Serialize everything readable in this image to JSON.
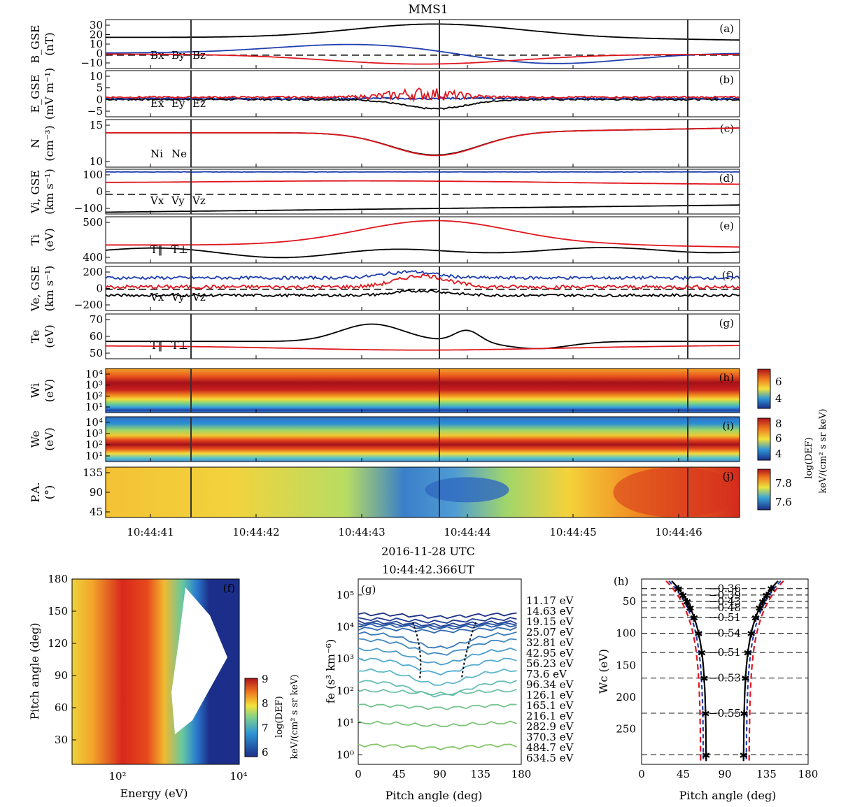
{
  "figure": {
    "spacecraft": "MMS1",
    "time_axis_label": "2016-11-28 UTC",
    "time_ticks": [
      "10:44:41",
      "10:44:42",
      "10:44:43",
      "10:44:44",
      "10:44:45",
      "10:44:46"
    ],
    "colorbar_ion": {
      "ticks": [
        "6",
        "4"
      ]
    },
    "colorbar_elec": {
      "ticks": [
        "8",
        "6",
        "4"
      ]
    },
    "colorbar_shared_label_1": "log(DEF)",
    "colorbar_shared_label_2": "keV/(cm² s sr keV)",
    "colorbar_pa": {
      "ticks": [
        "7.8",
        "7.6"
      ]
    }
  },
  "chart_data": [
    {
      "type": "line",
      "panel": "a",
      "label": "(a)",
      "ylabel_1": "B_GSE",
      "ylabel_2": "(nT)",
      "yticks": [
        "30",
        "20",
        "10",
        "0",
        "−10"
      ],
      "ylim": [
        -12,
        32
      ],
      "series": [
        {
          "name": "Bx",
          "color": "#000000"
        },
        {
          "name": "By",
          "color": "#1f3fae"
        },
        {
          "name": "Bz",
          "color": "#e0161e"
        }
      ]
    },
    {
      "type": "line",
      "panel": "b",
      "label": "(b)",
      "ylabel_1": "E_GSE",
      "ylabel_2": "(mV m⁻¹)",
      "yticks": [
        "10",
        "5",
        "0",
        "−5"
      ],
      "ylim": [
        -8,
        12
      ],
      "series": [
        {
          "name": "Ex",
          "color": "#000000"
        },
        {
          "name": "Ey",
          "color": "#1f3fae"
        },
        {
          "name": "Ez",
          "color": "#e0161e"
        }
      ]
    },
    {
      "type": "line",
      "panel": "c",
      "label": "(c)",
      "ylabel_1": "N",
      "ylabel_2": "(cm⁻³)",
      "yticks": [
        "15",
        "10"
      ],
      "ylim": [
        7,
        16
      ],
      "series": [
        {
          "name": "Ni",
          "color": "#000000"
        },
        {
          "name": "Ne",
          "color": "#e0161e"
        }
      ]
    },
    {
      "type": "line",
      "panel": "d",
      "label": "(d)",
      "ylabel_1": "Vi, GSE",
      "ylabel_2": "(km s⁻¹)",
      "yticks": [
        "100",
        "0",
        "−100"
      ],
      "ylim": [
        -110,
        140
      ],
      "series": [
        {
          "name": "Vx",
          "color": "#000000"
        },
        {
          "name": "Vy",
          "color": "#1f3fae"
        },
        {
          "name": "Vz",
          "color": "#e0161e"
        }
      ]
    },
    {
      "type": "line",
      "panel": "e",
      "label": "(e)",
      "ylabel_1": "Ti",
      "ylabel_2": "(eV)",
      "yticks": [
        "500",
        "400"
      ],
      "ylim": [
        330,
        510
      ],
      "series": [
        {
          "name": "T‖",
          "color": "#000000"
        },
        {
          "name": "T⊥",
          "color": "#e0161e"
        }
      ]
    },
    {
      "type": "line",
      "panel": "f",
      "label": "(f)",
      "ylabel_1": "Ve, GSE",
      "ylabel_2": "(km s⁻¹)",
      "yticks": [
        "200",
        "0",
        "−200"
      ],
      "ylim": [
        -280,
        300
      ],
      "series": [
        {
          "name": "Vx",
          "color": "#000000"
        },
        {
          "name": "Vy",
          "color": "#1f3fae"
        },
        {
          "name": "Vz",
          "color": "#e0161e"
        }
      ]
    },
    {
      "type": "line",
      "panel": "g",
      "label": "(g)",
      "ylabel_1": "Te",
      "ylabel_2": "(eV)",
      "yticks": [
        "70",
        "60",
        "50"
      ],
      "ylim": [
        45,
        76
      ],
      "series": [
        {
          "name": "T‖",
          "color": "#000000"
        },
        {
          "name": "T⊥",
          "color": "#e0161e"
        }
      ]
    },
    {
      "type": "heatmap",
      "panel": "h",
      "label": "(h)",
      "ylabel_1": "Wi",
      "ylabel_2": "(eV)",
      "yticks": [
        "10⁴",
        "10³",
        "10²",
        "10¹"
      ]
    },
    {
      "type": "heatmap",
      "panel": "i",
      "label": "(i)",
      "ylabel_1": "We",
      "ylabel_2": "(eV)",
      "yticks": [
        "10⁴",
        "10³",
        "10²",
        "10¹"
      ]
    },
    {
      "type": "heatmap",
      "panel": "j",
      "label": "(j)",
      "ylabel_1": "P.A.",
      "ylabel_2": "(°)",
      "yticks": [
        "135",
        "90",
        "45"
      ]
    },
    {
      "type": "heatmap",
      "panel": "f2",
      "label": "(f)",
      "xlabel": "Energy (eV)",
      "ylabel": "Pitch angle (deg)",
      "xticks": [
        "10²",
        "10⁴"
      ],
      "yticks": [
        "180",
        "150",
        "120",
        "90",
        "60",
        "30"
      ],
      "colorbar_ticks": [
        "9",
        "8",
        "7",
        "6"
      ],
      "colorbar_label_1": "log(DEF)",
      "colorbar_label_2": "keV/(cm² s sr keV)"
    },
    {
      "type": "line",
      "panel": "g2",
      "label": "(g)",
      "title": "10:44:42.366UT",
      "xlabel": "Pitch angle (deg)",
      "ylabel": "fe (s³ km⁻⁶)",
      "xticks": [
        "0",
        "45",
        "90",
        "135",
        "180"
      ],
      "yticks": [
        "10⁵",
        "10⁴",
        "10³",
        "10²",
        "10¹",
        "10⁰"
      ],
      "energies": [
        "11.17 eV",
        "14.63 eV",
        "19.15 eV",
        "25.07 eV",
        "32.81 eV",
        "42.95 eV",
        "56.23 eV",
        "73.6 eV",
        "96.34 eV",
        "126.1 eV",
        "165.1 eV",
        "216.1 eV",
        "282.9 eV",
        "370.3 eV",
        "484.7 eV",
        "634.5 eV"
      ],
      "log_f": [
        4.4,
        4.25,
        4.15,
        4.1,
        4.05,
        3.95,
        3.8,
        3.6,
        3.3,
        3.0,
        2.65,
        2.3,
        2.0,
        1.55,
        1.0,
        0.3
      ],
      "colors": [
        "#1c2f86",
        "#203a8f",
        "#244497",
        "#29509f",
        "#2d5ca8",
        "#326aaf",
        "#3a7ab9",
        "#438ac3",
        "#4b9ccb",
        "#53abcf",
        "#5eb8c9",
        "#67bfb6",
        "#6fc2a2",
        "#76c48d",
        "#7dc47b",
        "#86c56a"
      ]
    },
    {
      "type": "scatter",
      "panel": "h2",
      "label": "(h)",
      "xlabel": "Pitch angle (deg)",
      "ylabel": "Wc (eV)",
      "xticks": [
        "0",
        "45",
        "90",
        "135",
        "180"
      ],
      "yticks": [
        "50",
        "100",
        "150",
        "200",
        "250"
      ],
      "levels": [
        {
          "energy": 25,
          "value": "0.36"
        },
        {
          "energy": 32,
          "value": "0.39"
        },
        {
          "energy": 43,
          "value": "0.43"
        },
        {
          "energy": 56,
          "value": "0.48"
        },
        {
          "energy": 74,
          "value": "0.51"
        },
        {
          "energy": 96,
          "value": "0.54"
        },
        {
          "energy": 126,
          "value": "0.51"
        },
        {
          "energy": 165,
          "value": "0.53"
        },
        {
          "energy": 216,
          "value": "0.55"
        }
      ],
      "levels_draw_at": [
        30,
        40,
        50,
        60,
        75,
        100,
        130,
        170,
        225,
        290
      ]
    }
  ]
}
